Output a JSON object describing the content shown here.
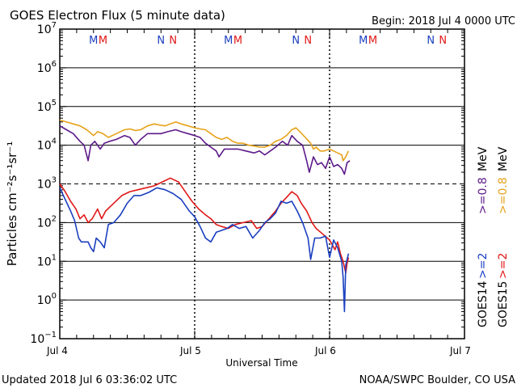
{
  "header": {
    "title": "GOES Electron Flux (5 minute data)",
    "begin": "Begin: 2018 Jul 4 0000 UTC"
  },
  "footer": {
    "updated": "Updated 2018 Jul  6 03:36:02 UTC",
    "credit": "NOAA/SWPC Boulder, CO USA"
  },
  "colors": {
    "goes14_2mev": "#1a3fbf",
    "goes15_2mev": "#e01818",
    "goes14_08mev": "#5c1a8a",
    "goes15_08mev": "#e6a21a"
  },
  "chart_data": {
    "type": "line",
    "title": "GOES Electron Flux (5 minute data)",
    "xlabel": "Universal Time",
    "ylabel": "Particles cm⁻²s⁻¹sr⁻¹",
    "x_unit": "days since 2018 Jul 4 0000 UTC",
    "xlim": [
      0,
      3
    ],
    "ylim_log10": [
      -1,
      7
    ],
    "x_ticks": [
      {
        "x": 0,
        "label": "Jul 4"
      },
      {
        "x": 1,
        "label": "Jul 5"
      },
      {
        "x": 2,
        "label": "Jul 6"
      },
      {
        "x": 3,
        "label": "Jul 7"
      }
    ],
    "y_ticks": [
      {
        "exp": 7,
        "base": "10",
        "sup": "7"
      },
      {
        "exp": 6,
        "base": "10",
        "sup": "6"
      },
      {
        "exp": 5,
        "base": "10",
        "sup": "5"
      },
      {
        "exp": 4,
        "base": "10",
        "sup": "4"
      },
      {
        "exp": 3,
        "base": "10",
        "sup": "3"
      },
      {
        "exp": 2,
        "base": "10",
        "sup": "2"
      },
      {
        "exp": 1,
        "base": "10",
        "sup": "1"
      },
      {
        "exp": 0,
        "base": "10",
        "sup": "0"
      },
      {
        "exp": -1,
        "base": "10",
        "sup": "−1"
      }
    ],
    "threshold_log10": 3,
    "mn_markers": [
      {
        "x": 0.25,
        "label": "M",
        "sat": "GOES14"
      },
      {
        "x": 0.32,
        "label": "M",
        "sat": "GOES15"
      },
      {
        "x": 0.75,
        "label": "N",
        "sat": "GOES14"
      },
      {
        "x": 0.84,
        "label": "N",
        "sat": "GOES15"
      },
      {
        "x": 1.25,
        "label": "M",
        "sat": "GOES14"
      },
      {
        "x": 1.32,
        "label": "M",
        "sat": "GOES15"
      },
      {
        "x": 1.75,
        "label": "N",
        "sat": "GOES14"
      },
      {
        "x": 1.84,
        "label": "N",
        "sat": "GOES15"
      },
      {
        "x": 2.25,
        "label": "M",
        "sat": "GOES14"
      },
      {
        "x": 2.32,
        "label": "M",
        "sat": "GOES15"
      },
      {
        "x": 2.75,
        "label": "N",
        "sat": "GOES14"
      },
      {
        "x": 2.84,
        "label": "N",
        "sat": "GOES15"
      }
    ],
    "legend": {
      "position": "right",
      "columns": [
        {
          "sat": "GOES14",
          "low": ">=0.8",
          "high": ">=2",
          "unit": "MeV"
        },
        {
          "sat": "GOES15",
          "low": ">=0.8",
          "high": ">=2",
          "unit": "MeV"
        }
      ]
    },
    "series": [
      {
        "name": "GOES15 >=0.8 MeV",
        "color": "#e6a21a",
        "log10_values": [
          [
            0.0,
            4.65
          ],
          [
            0.05,
            4.6
          ],
          [
            0.1,
            4.55
          ],
          [
            0.15,
            4.5
          ],
          [
            0.2,
            4.4
          ],
          [
            0.25,
            4.25
          ],
          [
            0.28,
            4.35
          ],
          [
            0.32,
            4.3
          ],
          [
            0.36,
            4.2
          ],
          [
            0.42,
            4.3
          ],
          [
            0.48,
            4.4
          ],
          [
            0.52,
            4.42
          ],
          [
            0.56,
            4.38
          ],
          [
            0.6,
            4.4
          ],
          [
            0.65,
            4.5
          ],
          [
            0.7,
            4.55
          ],
          [
            0.74,
            4.52
          ],
          [
            0.78,
            4.5
          ],
          [
            0.82,
            4.55
          ],
          [
            0.86,
            4.6
          ],
          [
            0.9,
            4.55
          ],
          [
            0.95,
            4.5
          ],
          [
            1.0,
            4.45
          ],
          [
            1.04,
            4.42
          ],
          [
            1.08,
            4.4
          ],
          [
            1.12,
            4.3
          ],
          [
            1.16,
            4.2
          ],
          [
            1.2,
            4.15
          ],
          [
            1.24,
            4.2
          ],
          [
            1.28,
            4.1
          ],
          [
            1.32,
            4.05
          ],
          [
            1.36,
            4.05
          ],
          [
            1.4,
            4.0
          ],
          [
            1.44,
            3.98
          ],
          [
            1.48,
            3.95
          ],
          [
            1.52,
            3.95
          ],
          [
            1.56,
            4.0
          ],
          [
            1.6,
            4.1
          ],
          [
            1.64,
            4.15
          ],
          [
            1.68,
            4.25
          ],
          [
            1.72,
            4.4
          ],
          [
            1.75,
            4.45
          ],
          [
            1.78,
            4.35
          ],
          [
            1.82,
            4.2
          ],
          [
            1.86,
            4.05
          ],
          [
            1.88,
            3.9
          ],
          [
            1.9,
            3.95
          ],
          [
            1.93,
            3.85
          ],
          [
            1.96,
            3.85
          ],
          [
            2.0,
            3.9
          ],
          [
            2.03,
            3.85
          ],
          [
            2.06,
            3.8
          ],
          [
            2.09,
            3.75
          ],
          [
            2.1,
            3.6
          ],
          [
            2.12,
            3.7
          ],
          [
            2.14,
            3.85
          ]
        ]
      },
      {
        "name": "GOES14 >=0.8 MeV",
        "color": "#5c1a8a",
        "log10_values": [
          [
            0.0,
            4.5
          ],
          [
            0.05,
            4.4
          ],
          [
            0.1,
            4.3
          ],
          [
            0.15,
            4.1
          ],
          [
            0.18,
            4.0
          ],
          [
            0.21,
            3.6
          ],
          [
            0.23,
            4.0
          ],
          [
            0.26,
            4.1
          ],
          [
            0.3,
            3.9
          ],
          [
            0.33,
            4.05
          ],
          [
            0.37,
            4.1
          ],
          [
            0.42,
            4.15
          ],
          [
            0.48,
            4.25
          ],
          [
            0.52,
            4.2
          ],
          [
            0.56,
            4.0
          ],
          [
            0.6,
            4.15
          ],
          [
            0.65,
            4.3
          ],
          [
            0.7,
            4.3
          ],
          [
            0.75,
            4.3
          ],
          [
            0.8,
            4.35
          ],
          [
            0.86,
            4.4
          ],
          [
            0.9,
            4.35
          ],
          [
            0.95,
            4.3
          ],
          [
            1.0,
            4.25
          ],
          [
            1.04,
            4.2
          ],
          [
            1.08,
            4.05
          ],
          [
            1.12,
            3.95
          ],
          [
            1.16,
            3.85
          ],
          [
            1.18,
            3.7
          ],
          [
            1.22,
            3.9
          ],
          [
            1.27,
            3.9
          ],
          [
            1.32,
            3.9
          ],
          [
            1.38,
            3.85
          ],
          [
            1.44,
            3.8
          ],
          [
            1.48,
            3.85
          ],
          [
            1.52,
            3.75
          ],
          [
            1.56,
            3.85
          ],
          [
            1.6,
            3.95
          ],
          [
            1.65,
            4.1
          ],
          [
            1.69,
            4.0
          ],
          [
            1.72,
            4.25
          ],
          [
            1.76,
            4.1
          ],
          [
            1.8,
            4.0
          ],
          [
            1.83,
            3.6
          ],
          [
            1.85,
            3.3
          ],
          [
            1.88,
            3.7
          ],
          [
            1.91,
            3.5
          ],
          [
            1.94,
            3.55
          ],
          [
            1.97,
            3.4
          ],
          [
            2.0,
            3.7
          ],
          [
            2.03,
            3.45
          ],
          [
            2.06,
            3.5
          ],
          [
            2.09,
            3.4
          ],
          [
            2.11,
            3.25
          ],
          [
            2.13,
            3.55
          ],
          [
            2.15,
            3.6
          ]
        ]
      },
      {
        "name": "GOES15 >=2 MeV",
        "color": "#e01818",
        "log10_values": [
          [
            0.0,
            3.0
          ],
          [
            0.04,
            2.8
          ],
          [
            0.08,
            2.55
          ],
          [
            0.12,
            2.35
          ],
          [
            0.15,
            2.1
          ],
          [
            0.18,
            2.2
          ],
          [
            0.21,
            2.0
          ],
          [
            0.24,
            2.1
          ],
          [
            0.28,
            2.35
          ],
          [
            0.31,
            2.1
          ],
          [
            0.34,
            2.3
          ],
          [
            0.4,
            2.5
          ],
          [
            0.46,
            2.7
          ],
          [
            0.52,
            2.8
          ],
          [
            0.58,
            2.85
          ],
          [
            0.64,
            2.9
          ],
          [
            0.7,
            2.95
          ],
          [
            0.76,
            3.05
          ],
          [
            0.82,
            3.15
          ],
          [
            0.88,
            3.05
          ],
          [
            0.93,
            2.8
          ],
          [
            0.98,
            2.55
          ],
          [
            1.03,
            2.35
          ],
          [
            1.08,
            2.2
          ],
          [
            1.12,
            2.1
          ],
          [
            1.16,
            1.95
          ],
          [
            1.2,
            1.9
          ],
          [
            1.25,
            1.85
          ],
          [
            1.3,
            1.95
          ],
          [
            1.36,
            2.0
          ],
          [
            1.42,
            2.05
          ],
          [
            1.46,
            1.85
          ],
          [
            1.5,
            1.9
          ],
          [
            1.55,
            2.1
          ],
          [
            1.6,
            2.3
          ],
          [
            1.64,
            2.5
          ],
          [
            1.68,
            2.65
          ],
          [
            1.72,
            2.8
          ],
          [
            1.76,
            2.7
          ],
          [
            1.79,
            2.5
          ],
          [
            1.83,
            2.3
          ],
          [
            1.87,
            2.0
          ],
          [
            1.9,
            1.85
          ],
          [
            1.95,
            1.7
          ],
          [
            2.0,
            1.55
          ],
          [
            2.04,
            1.3
          ],
          [
            2.06,
            1.5
          ],
          [
            2.08,
            1.2
          ],
          [
            2.1,
            1.0
          ],
          [
            2.12,
            0.7
          ],
          [
            2.13,
            0.95
          ],
          [
            2.14,
            1.1
          ]
        ]
      },
      {
        "name": "GOES14 >=2 MeV",
        "color": "#1a3fbf",
        "log10_values": [
          [
            0.0,
            2.9
          ],
          [
            0.04,
            2.6
          ],
          [
            0.08,
            2.3
          ],
          [
            0.11,
            2.05
          ],
          [
            0.14,
            1.6
          ],
          [
            0.16,
            1.5
          ],
          [
            0.18,
            1.5
          ],
          [
            0.21,
            1.5
          ],
          [
            0.23,
            1.35
          ],
          [
            0.25,
            1.25
          ],
          [
            0.27,
            1.6
          ],
          [
            0.3,
            1.5
          ],
          [
            0.33,
            1.35
          ],
          [
            0.36,
            1.95
          ],
          [
            0.4,
            2.0
          ],
          [
            0.45,
            2.2
          ],
          [
            0.5,
            2.5
          ],
          [
            0.55,
            2.7
          ],
          [
            0.6,
            2.7
          ],
          [
            0.66,
            2.78
          ],
          [
            0.72,
            2.9
          ],
          [
            0.78,
            2.85
          ],
          [
            0.84,
            2.75
          ],
          [
            0.9,
            2.6
          ],
          [
            0.96,
            2.3
          ],
          [
            1.0,
            2.15
          ],
          [
            1.04,
            1.9
          ],
          [
            1.08,
            1.6
          ],
          [
            1.12,
            1.5
          ],
          [
            1.16,
            1.75
          ],
          [
            1.2,
            1.8
          ],
          [
            1.24,
            1.85
          ],
          [
            1.28,
            1.95
          ],
          [
            1.33,
            1.85
          ],
          [
            1.38,
            1.9
          ],
          [
            1.43,
            1.6
          ],
          [
            1.48,
            1.8
          ],
          [
            1.52,
            2.0
          ],
          [
            1.56,
            2.1
          ],
          [
            1.6,
            2.25
          ],
          [
            1.64,
            2.55
          ],
          [
            1.68,
            2.5
          ],
          [
            1.72,
            2.55
          ],
          [
            1.76,
            2.3
          ],
          [
            1.8,
            2.0
          ],
          [
            1.84,
            1.6
          ],
          [
            1.86,
            1.05
          ],
          [
            1.89,
            1.6
          ],
          [
            1.93,
            1.6
          ],
          [
            1.97,
            1.65
          ],
          [
            2.0,
            1.1
          ],
          [
            2.03,
            1.55
          ],
          [
            2.06,
            1.35
          ],
          [
            2.09,
            1.0
          ],
          [
            2.1,
            0.6
          ],
          [
            2.11,
            -0.3
          ],
          [
            2.12,
            0.9
          ],
          [
            2.14,
            1.2
          ]
        ]
      }
    ]
  }
}
